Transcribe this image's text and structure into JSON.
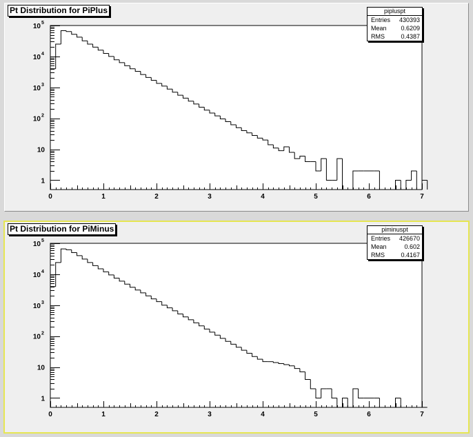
{
  "chart_data": [
    {
      "type": "histogram",
      "title": "Pt Distribution for PiPlus",
      "xlim": [
        0,
        7
      ],
      "ylim": [
        0.5,
        100000
      ],
      "log_y": true,
      "x_ticks": [
        "0",
        "1",
        "2",
        "3",
        "4",
        "5",
        "6",
        "7"
      ],
      "y_ticks": [
        {
          "v": 1,
          "t": "1"
        },
        {
          "v": 10,
          "t": "10"
        },
        {
          "v": 100,
          "t": "10",
          "sup": "2"
        },
        {
          "v": 1000,
          "t": "10",
          "sup": "3"
        },
        {
          "v": 10000,
          "t": "10",
          "sup": "4"
        },
        {
          "v": 100000,
          "t": "10",
          "sup": "5"
        }
      ],
      "stats": {
        "name": "pipluspt",
        "rows": [
          [
            "Entries",
            "430393"
          ],
          [
            "Mean",
            "0.6209"
          ],
          [
            "RMS",
            "0.4387"
          ]
        ]
      },
      "bin_width": 0.1,
      "counts": [
        4000,
        25000,
        68000,
        64000,
        52000,
        42000,
        32000,
        25000,
        20000,
        16000,
        12500,
        10000,
        7800,
        6300,
        5000,
        4000,
        3300,
        2600,
        2100,
        1700,
        1350,
        1100,
        880,
        700,
        560,
        450,
        360,
        290,
        230,
        185,
        148,
        120,
        96,
        78,
        62,
        50,
        40,
        34,
        28,
        23,
        20,
        14,
        11,
        9,
        12,
        8,
        5,
        6,
        4,
        4,
        2,
        5,
        1,
        1,
        5,
        0,
        0,
        2,
        2,
        2,
        2,
        2,
        0,
        0,
        0,
        1,
        0,
        1,
        2,
        0,
        1
      ]
    },
    {
      "type": "histogram",
      "title": "Pt Distribution for PiMinus",
      "xlim": [
        0,
        7
      ],
      "ylim": [
        0.5,
        100000
      ],
      "log_y": true,
      "x_ticks": [
        "0",
        "1",
        "2",
        "3",
        "4",
        "5",
        "6",
        "7"
      ],
      "y_ticks": [
        {
          "v": 1,
          "t": "1"
        },
        {
          "v": 10,
          "t": "10"
        },
        {
          "v": 100,
          "t": "10",
          "sup": "2"
        },
        {
          "v": 1000,
          "t": "10",
          "sup": "3"
        },
        {
          "v": 10000,
          "t": "10",
          "sup": "4"
        },
        {
          "v": 100000,
          "t": "10",
          "sup": "5"
        }
      ],
      "stats": {
        "name": "piminuspt",
        "rows": [
          [
            "Entries",
            "426670"
          ],
          [
            "Mean",
            "0.602"
          ],
          [
            "RMS",
            "0.4167"
          ]
        ]
      },
      "bin_width": 0.1,
      "counts": [
        4000,
        24000,
        66000,
        62000,
        50000,
        40000,
        31000,
        24000,
        19000,
        15000,
        12000,
        9500,
        7500,
        6000,
        4800,
        3800,
        3100,
        2500,
        2000,
        1600,
        1300,
        1000,
        820,
        660,
        520,
        420,
        340,
        270,
        215,
        170,
        135,
        108,
        85,
        68,
        55,
        44,
        35,
        28,
        22,
        18,
        15,
        15,
        14,
        13,
        12,
        11,
        9,
        7,
        4,
        2,
        1,
        2,
        2,
        1,
        0,
        1,
        0,
        2,
        1,
        1,
        1,
        1,
        0,
        0,
        0,
        1,
        0,
        0,
        0,
        0,
        0
      ]
    }
  ],
  "colors": {
    "pad_bg": "#efefef",
    "frame_bg": "#ffffff",
    "line": "#000000",
    "highlight": "#e6e652"
  }
}
